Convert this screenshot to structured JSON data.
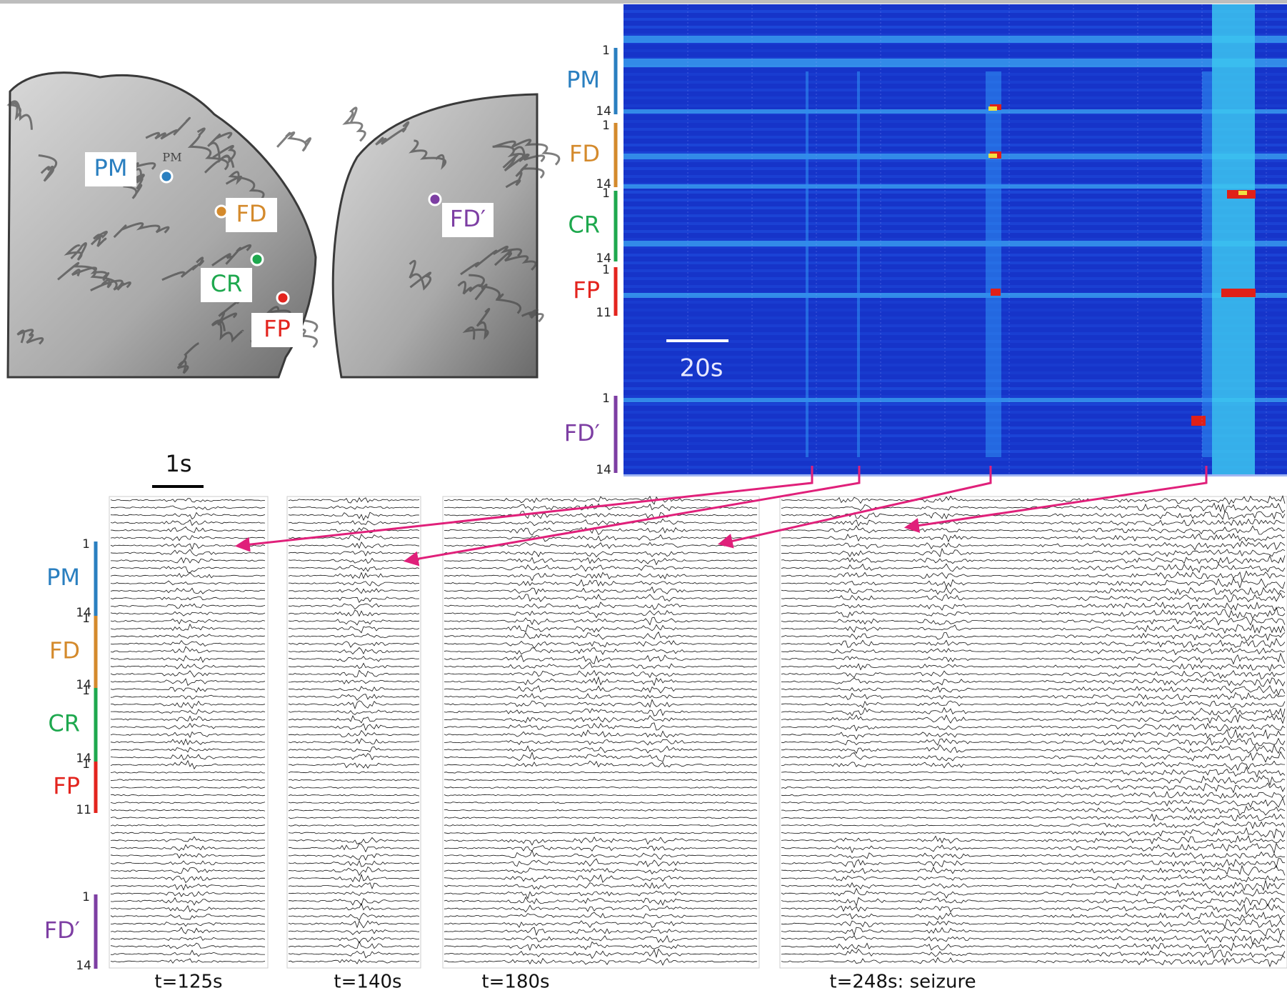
{
  "brain": {
    "labels": [
      "PM",
      "FD",
      "CR",
      "FP",
      "FD′"
    ],
    "small_label": "PM"
  },
  "groups": [
    {
      "name": "PM",
      "color": "#2a7fc0",
      "first": 1,
      "last": 14
    },
    {
      "name": "FD",
      "color": "#d48a2c",
      "first": 1,
      "last": 14
    },
    {
      "name": "CR",
      "color": "#1ea84e",
      "first": 1,
      "last": 14
    },
    {
      "name": "FP",
      "color": "#e3241e",
      "first": 1,
      "last": 11
    },
    {
      "name": "FD′",
      "color": "#7d3ea3",
      "first": 1,
      "last": 14
    }
  ],
  "heatmap": {
    "scale_bar": "20s"
  },
  "traces": {
    "scale_bar": "1s",
    "panels": [
      "t=125s",
      "t=140s",
      "t=180s",
      "t=248s: seizure"
    ]
  }
}
